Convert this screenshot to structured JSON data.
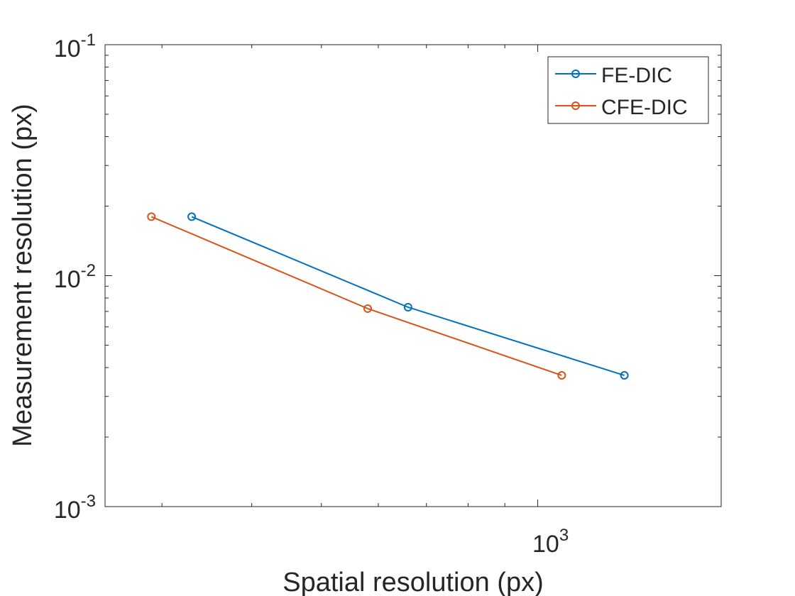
{
  "chart_data": {
    "type": "line",
    "xscale": "log",
    "yscale": "log",
    "xlabel": "Spatial resolution (px)",
    "ylabel": "Measurement resolution (px)",
    "xlim": [
      250,
      1800
    ],
    "ylim": [
      0.001,
      0.1
    ],
    "grid": false,
    "legend_location": "top-right",
    "xticks": [
      {
        "base": "10",
        "exp": "3",
        "value": 1000
      }
    ],
    "yticks": [
      {
        "base": "10",
        "exp": "-3",
        "value": 0.001
      },
      {
        "base": "10",
        "exp": "-2",
        "value": 0.01
      },
      {
        "base": "10",
        "exp": "-1",
        "value": 0.1
      }
    ],
    "series": [
      {
        "name": "FE-DIC",
        "color": "#0072BD",
        "marker": "circle",
        "x": [
          330,
          660,
          1320
        ],
        "y": [
          0.018,
          0.0073,
          0.0037
        ]
      },
      {
        "name": "CFE-DIC",
        "color": "#D95319",
        "marker": "circle",
        "x": [
          290,
          580,
          1080
        ],
        "y": [
          0.018,
          0.0072,
          0.0037
        ]
      }
    ]
  }
}
